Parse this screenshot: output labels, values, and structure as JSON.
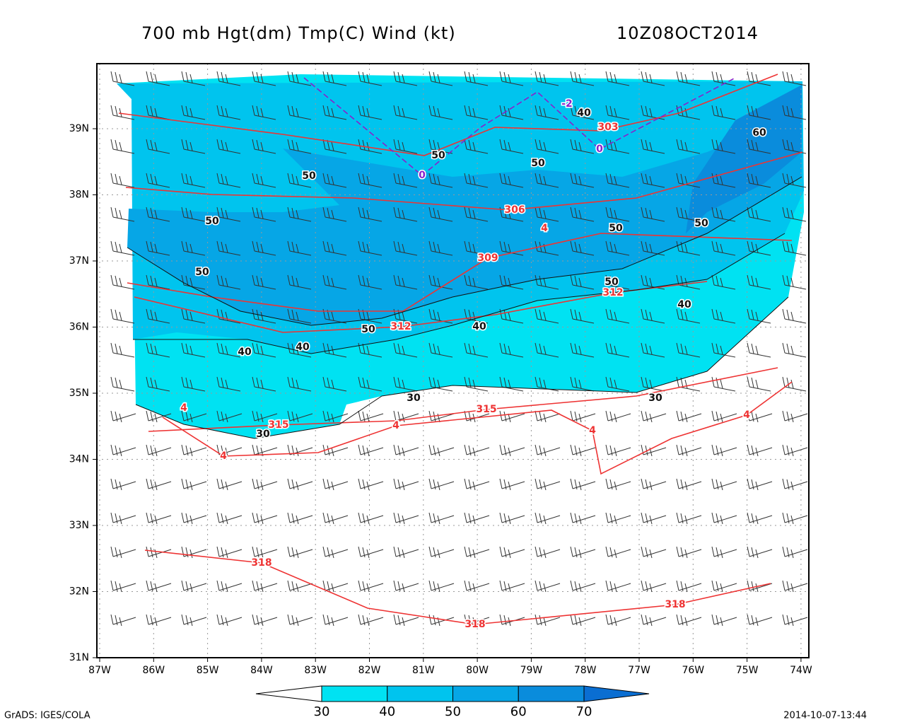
{
  "header": {
    "title": "700 mb Hgt(dm) Tmp(C) Wind (kt)",
    "time": "10Z08OCT2014"
  },
  "map": {
    "lon_ticks": [
      {
        "value": -87,
        "label": "87W"
      },
      {
        "value": -86,
        "label": "86W"
      },
      {
        "value": -85,
        "label": "85W"
      },
      {
        "value": -84,
        "label": "84W"
      },
      {
        "value": -83,
        "label": "83W"
      },
      {
        "value": -82,
        "label": "82W"
      },
      {
        "value": -81,
        "label": "81W"
      },
      {
        "value": -80,
        "label": "80W"
      },
      {
        "value": -79,
        "label": "79W"
      },
      {
        "value": -78,
        "label": "78W"
      },
      {
        "value": -77,
        "label": "77W"
      },
      {
        "value": -76,
        "label": "76W"
      },
      {
        "value": -75,
        "label": "75W"
      },
      {
        "value": -74,
        "label": "74W"
      }
    ],
    "lat_ticks": [
      {
        "value": 31,
        "label": "31N"
      },
      {
        "value": 32,
        "label": "32N"
      },
      {
        "value": 33,
        "label": "33N"
      },
      {
        "value": 34,
        "label": "34N"
      },
      {
        "value": 35,
        "label": "35N"
      },
      {
        "value": 36,
        "label": "36N"
      },
      {
        "value": 37,
        "label": "37N"
      },
      {
        "value": 38,
        "label": "38N"
      },
      {
        "value": 39,
        "label": "39N"
      }
    ],
    "contour_labels": [
      50,
      50,
      50,
      50,
      40,
      40,
      50,
      312,
      40,
      30,
      30,
      315,
      315,
      4,
      4,
      4,
      4,
      318,
      318,
      318,
      309,
      306,
      4,
      50,
      50,
      50,
      312,
      40,
      30,
      4,
      60,
      50,
      303,
      0,
      -2,
      40,
      0
    ]
  },
  "colorbar": {
    "levels": [
      30,
      40,
      50,
      60,
      70
    ],
    "colors": [
      "#ffffff",
      "#00e2f2",
      "#00c4ee",
      "#06a6e6",
      "#0a8cdc",
      "#0a6ed2"
    ]
  },
  "footer": {
    "left": "GrADS: IGES/COLA",
    "right": "2014-10-07-13:44"
  }
}
